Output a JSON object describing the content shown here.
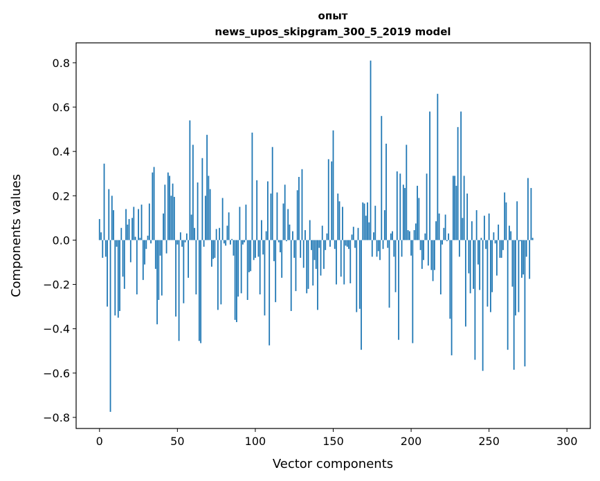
{
  "chart_data": {
    "type": "bar",
    "title": "опыт",
    "subtitle": "news_upos_skipgram_300_5_2019 model",
    "xlabel": "Vector components",
    "ylabel": "Components values",
    "xlim": [
      -15,
      315
    ],
    "ylim": [
      -0.85,
      0.89
    ],
    "x_ticks": [
      0,
      50,
      100,
      150,
      200,
      250,
      300
    ],
    "x_tick_labels": [
      "0",
      "50",
      "100",
      "150",
      "200",
      "250",
      "300"
    ],
    "y_ticks": [
      -0.8,
      -0.6,
      -0.4,
      -0.2,
      0.0,
      0.2,
      0.4,
      0.6,
      0.8
    ],
    "y_tick_labels": [
      "−0.8",
      "−0.6",
      "−0.4",
      "−0.2",
      "0.0",
      "0.2",
      "0.4",
      "0.6",
      "0.8"
    ],
    "grid": false,
    "bar_color": "#1f77b4",
    "values": [
      0.095,
      0.035,
      -0.08,
      0.345,
      -0.075,
      -0.3,
      0.23,
      -0.775,
      0.2,
      0.135,
      -0.34,
      -0.03,
      -0.35,
      -0.32,
      0.055,
      -0.165,
      -0.22,
      0.14,
      0.07,
      0.095,
      -0.1,
      0.1,
      0.15,
      0.015,
      -0.245,
      0.14,
      0.01,
      0.16,
      -0.18,
      -0.11,
      -0.04,
      0.02,
      0.165,
      -0.015,
      0.305,
      0.33,
      -0.13,
      -0.38,
      -0.27,
      -0.07,
      -0.25,
      0.12,
      0.25,
      -0.06,
      0.305,
      0.29,
      0.2,
      0.255,
      0.195,
      -0.345,
      -0.02,
      -0.455,
      0.035,
      -0.03,
      -0.285,
      -0.01,
      0.03,
      -0.17,
      0.54,
      0.115,
      0.43,
      0.055,
      -0.245,
      0.26,
      -0.455,
      -0.465,
      0.37,
      -0.03,
      0.2,
      0.475,
      0.29,
      0.23,
      -0.12,
      -0.085,
      -0.08,
      0.05,
      -0.315,
      0.055,
      -0.29,
      0.19,
      -0.015,
      -0.025,
      0.065,
      0.125,
      -0.02,
      0.005,
      -0.07,
      -0.36,
      -0.37,
      -0.255,
      0.15,
      -0.24,
      -0.02,
      -0.01,
      0.16,
      -0.27,
      -0.145,
      -0.14,
      0.485,
      -0.09,
      -0.08,
      0.27,
      -0.075,
      -0.245,
      0.09,
      -0.065,
      -0.34,
      0.04,
      0.265,
      -0.475,
      0.21,
      0.42,
      -0.095,
      -0.28,
      0.215,
      -0.01,
      -0.055,
      -0.17,
      0.165,
      0.25,
      -0.005,
      0.14,
      0.07,
      -0.32,
      0.04,
      -0.08,
      -0.23,
      0.225,
      0.285,
      -0.08,
      0.32,
      -0.125,
      0.045,
      -0.24,
      -0.22,
      0.09,
      -0.045,
      -0.205,
      -0.09,
      -0.13,
      -0.315,
      -0.035,
      -0.16,
      0.065,
      -0.13,
      -0.045,
      0.03,
      0.365,
      -0.03,
      0.355,
      0.495,
      -0.04,
      -0.2,
      0.21,
      0.175,
      -0.165,
      0.15,
      -0.2,
      -0.025,
      -0.03,
      -0.04,
      -0.195,
      0.025,
      0.06,
      -0.035,
      -0.325,
      0.055,
      -0.31,
      -0.495,
      0.17,
      0.165,
      0.11,
      0.17,
      0.08,
      0.81,
      -0.075,
      0.035,
      0.155,
      -0.075,
      -0.05,
      -0.09,
      0.56,
      -0.04,
      0.135,
      0.435,
      -0.035,
      -0.305,
      0.03,
      0.04,
      -0.075,
      -0.235,
      0.31,
      -0.45,
      0.3,
      -0.075,
      0.25,
      0.235,
      0.43,
      0.045,
      0.04,
      -0.07,
      -0.465,
      0.045,
      0.075,
      0.245,
      0.19,
      -0.045,
      -0.13,
      -0.09,
      0.03,
      0.3,
      -0.115,
      0.58,
      -0.135,
      -0.185,
      -0.135,
      0.085,
      0.66,
      0.12,
      -0.245,
      -0.02,
      0.055,
      0.115,
      -0.005,
      0.03,
      -0.355,
      -0.52,
      0.29,
      0.29,
      0.245,
      0.51,
      -0.075,
      0.58,
      0.1,
      0.29,
      -0.39,
      0.21,
      -0.15,
      -0.24,
      0.085,
      -0.22,
      -0.54,
      0.135,
      -0.11,
      -0.225,
      0.01,
      -0.59,
      0.11,
      -0.04,
      -0.3,
      0.12,
      -0.325,
      -0.235,
      0.035,
      -0.015,
      -0.16,
      0.07,
      -0.08,
      -0.08,
      -0.045,
      0.215,
      0.17,
      -0.495,
      0.065,
      0.04,
      -0.21,
      -0.585,
      -0.34,
      0.175,
      -0.325,
      -0.005,
      -0.17,
      -0.155,
      -0.57,
      -0.075,
      0.28,
      -0.175,
      0.235,
      0.01
    ]
  }
}
